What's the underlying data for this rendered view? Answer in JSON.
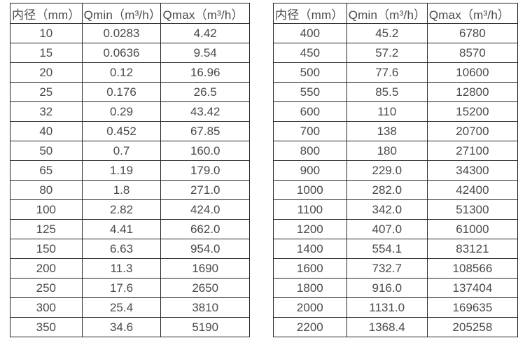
{
  "styles": {
    "background": "#ffffff",
    "text_color": "#4a4a4a",
    "border_color": "#262626"
  },
  "chart_data": [
    {
      "type": "table",
      "columns": [
        "内径（mm）",
        "Qmin（m³/h）",
        "Qmax（m³/h）"
      ],
      "rows": [
        [
          "10",
          "0.0283",
          "4.42"
        ],
        [
          "15",
          "0.0636",
          "9.54"
        ],
        [
          "20",
          "0.12",
          "16.96"
        ],
        [
          "25",
          "0.176",
          "26.5"
        ],
        [
          "32",
          "0.29",
          "43.42"
        ],
        [
          "40",
          "0.452",
          "67.85"
        ],
        [
          "50",
          "0.7",
          "160.0"
        ],
        [
          "65",
          "1.19",
          "179.0"
        ],
        [
          "80",
          "1.8",
          "271.0"
        ],
        [
          "100",
          "2.82",
          "424.0"
        ],
        [
          "125",
          "4.41",
          "662.0"
        ],
        [
          "150",
          "6.63",
          "954.0"
        ],
        [
          "200",
          "11.3",
          "1690"
        ],
        [
          "250",
          "17.6",
          "2650"
        ],
        [
          "300",
          "25.4",
          "3810"
        ],
        [
          "350",
          "34.6",
          "5190"
        ]
      ]
    },
    {
      "type": "table",
      "columns": [
        "内径（mm）",
        "Qmin（m³/h）",
        "Qmax（m³/h）"
      ],
      "rows": [
        [
          "400",
          "45.2",
          "6780"
        ],
        [
          "450",
          "57.2",
          "8570"
        ],
        [
          "500",
          "77.6",
          "10600"
        ],
        [
          "550",
          "85.5",
          "12800"
        ],
        [
          "600",
          "110",
          "15200"
        ],
        [
          "700",
          "138",
          "20700"
        ],
        [
          "800",
          "180",
          "27100"
        ],
        [
          "900",
          "229.0",
          "34300"
        ],
        [
          "1000",
          "282.0",
          "42400"
        ],
        [
          "1100",
          "342.0",
          "51300"
        ],
        [
          "1200",
          "407.0",
          "61000"
        ],
        [
          "1400",
          "554.1",
          "83121"
        ],
        [
          "1600",
          "732.7",
          "108566"
        ],
        [
          "1800",
          "916.0",
          "137404"
        ],
        [
          "2000",
          "1131.0",
          "169635"
        ],
        [
          "2200",
          "1368.4",
          "205258"
        ]
      ]
    }
  ]
}
